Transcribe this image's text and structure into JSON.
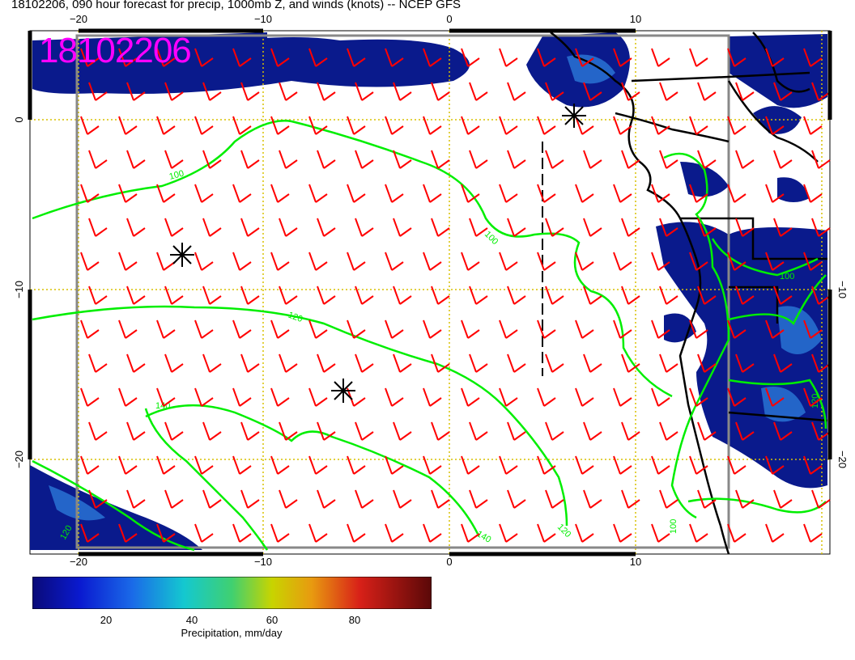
{
  "header": {
    "title": "18102206, 090 hour forecast for precip, 1000mb Z, and winds (knots) -- NCEP GFS"
  },
  "map": {
    "stamp": "18102206",
    "stamp_color": "#ff00ff",
    "lon_top_labels": [
      "−20",
      "−10",
      "0",
      "10"
    ],
    "lon_bottom_labels": [
      "−20",
      "−10",
      "0",
      "10"
    ],
    "lat_left_labels": [
      "0",
      "−10",
      "−20"
    ],
    "lat_right_labels": [
      "−10",
      "−20"
    ],
    "contour_labels": [
      "100",
      "100",
      "120",
      "140",
      "140",
      "120",
      "100",
      "100",
      "120",
      "120"
    ],
    "contour_color": "#00ee00",
    "wind_barb_color": "#ff0000",
    "grid_line_color": "#d8c000",
    "precip_color_dark": "#0a1a8c"
  },
  "colorbar": {
    "ticks": [
      "20",
      "40",
      "60",
      "80"
    ],
    "label": "Precipitation, mm/day"
  }
}
